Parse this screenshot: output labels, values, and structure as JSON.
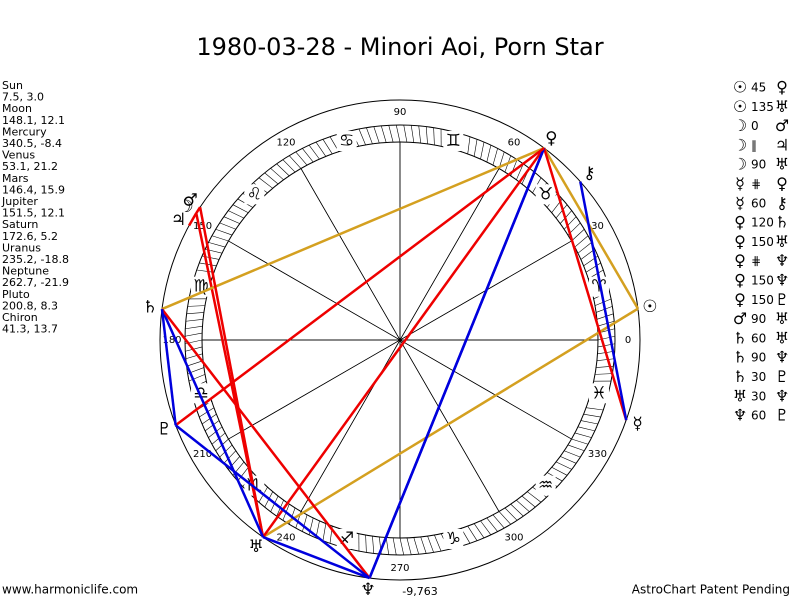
{
  "header": {
    "title": "1980-03-28 - Minori Aoi, Porn Star"
  },
  "planets": [
    {
      "name": "Sun",
      "position": "7.5, 3.0",
      "glyph": "☉"
    },
    {
      "name": "Moon",
      "position": "148.1, 12.1",
      "glyph": "☽"
    },
    {
      "name": "Mercury",
      "position": "340.5, -8.4",
      "glyph": "☿"
    },
    {
      "name": "Venus",
      "position": "53.1, 21.2",
      "glyph": "♀"
    },
    {
      "name": "Mars",
      "position": "146.4, 15.9",
      "glyph": "♂"
    },
    {
      "name": "Jupiter",
      "position": "151.5, 12.1",
      "glyph": "♃"
    },
    {
      "name": "Saturn",
      "position": "172.6, 5.2",
      "glyph": "♄"
    },
    {
      "name": "Uranus",
      "position": "235.2, -18.8",
      "glyph": "♅"
    },
    {
      "name": "Neptune",
      "position": "262.7, -21.9",
      "glyph": "♆"
    },
    {
      "name": "Pluto",
      "position": "200.8, 8.3",
      "glyph": "♇"
    },
    {
      "name": "Chiron",
      "position": "41.3, 13.7",
      "glyph": "⚷"
    }
  ],
  "signs": [
    "♈",
    "♉",
    "♊",
    "♋",
    "♌",
    "♍",
    "♎",
    "♏",
    "♐",
    "♑",
    "♒",
    "♓"
  ],
  "degree_labels": [
    0,
    30,
    60,
    90,
    120,
    150,
    180,
    210,
    240,
    270,
    300,
    330
  ],
  "note": "-9,763",
  "aspects": [
    {
      "from": "☉",
      "aspect": "45",
      "to": "♀",
      "color": "#d4a020"
    },
    {
      "from": "☉",
      "aspect": "135",
      "to": "♅",
      "color": "#d4a020"
    },
    {
      "from": "☽",
      "aspect": "0",
      "to": "♂",
      "color": "#ee0000"
    },
    {
      "from": "☽",
      "aspect": "∥",
      "to": "♃",
      "color": "#ee0000"
    },
    {
      "from": "☽",
      "aspect": "90",
      "to": "♅",
      "color": "#ee0000"
    },
    {
      "from": "☿",
      "aspect": "⋕",
      "to": "♀",
      "color": "#ee0000"
    },
    {
      "from": "☿",
      "aspect": "60",
      "to": "⚷",
      "color": "#0000dd"
    },
    {
      "from": "♀",
      "aspect": "120",
      "to": "♄",
      "color": "#d4a020"
    },
    {
      "from": "♀",
      "aspect": "150",
      "to": "♅",
      "color": "#ee0000"
    },
    {
      "from": "♀",
      "aspect": "⋕",
      "to": "♆",
      "color": "#0000dd"
    },
    {
      "from": "♀",
      "aspect": "150",
      "to": "♆",
      "color": "#0000dd"
    },
    {
      "from": "♀",
      "aspect": "150",
      "to": "♇",
      "color": "#ee0000"
    },
    {
      "from": "♂",
      "aspect": "90",
      "to": "♅",
      "color": "#ee0000"
    },
    {
      "from": "♄",
      "aspect": "60",
      "to": "♅",
      "color": "#0000dd"
    },
    {
      "from": "♄",
      "aspect": "90",
      "to": "♆",
      "color": "#ee0000"
    },
    {
      "from": "♄",
      "aspect": "30",
      "to": "♇",
      "color": "#0000dd"
    },
    {
      "from": "♅",
      "aspect": "30",
      "to": "♆",
      "color": "#0000dd"
    },
    {
      "from": "♆",
      "aspect": "60",
      "to": "♇",
      "color": "#0000dd"
    }
  ],
  "footer": {
    "left": "www.harmoniclife.com",
    "right": "AstroChart Patent Pending"
  }
}
